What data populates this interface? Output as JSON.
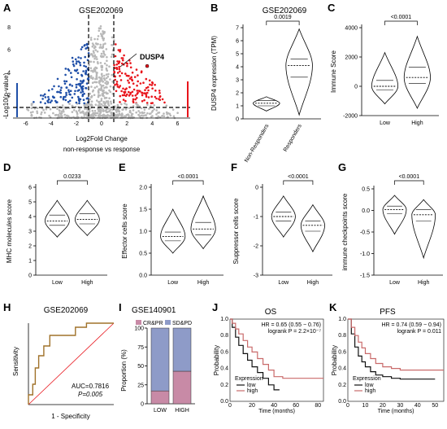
{
  "panels": {
    "A": {
      "letter": "A",
      "title": "GSE202069",
      "ylabel": "-Log10(p-value)",
      "xlabel": "Log2Fold Change",
      "subtitle": "non-response vs response",
      "annotation": "DUSP4",
      "xticks": [
        "-6",
        "-4",
        "-2",
        "0",
        "2",
        "4",
        "6"
      ],
      "yticks": [
        "2",
        "4",
        "6",
        "8"
      ]
    },
    "B": {
      "letter": "B",
      "title": "GSE202069",
      "pvalue": "0.0019",
      "ylabel": "DUSP4 expression (TPM)",
      "groups": [
        "Non-Responders",
        "Responders"
      ],
      "yticks": [
        "0",
        "1",
        "2",
        "3",
        "4",
        "5",
        "6",
        "7"
      ]
    },
    "C": {
      "letter": "C",
      "pvalue": "<0.0001",
      "ylabel": "Immune Score",
      "groups": [
        "Low",
        "High"
      ],
      "yticks": [
        "-2000",
        "0",
        "2000",
        "4000"
      ]
    },
    "D": {
      "letter": "D",
      "pvalue": "0.0233",
      "ylabel": "MHC molecules score",
      "groups": [
        "Low",
        "High"
      ],
      "yticks": [
        "0",
        "1",
        "2",
        "3",
        "4",
        "5",
        "6"
      ]
    },
    "E": {
      "letter": "E",
      "pvalue": "<0.0001",
      "ylabel": "Effector cells score",
      "groups": [
        "Low",
        "High"
      ],
      "yticks": [
        "0.0",
        "0.5",
        "1.0",
        "1.5",
        "2.0"
      ]
    },
    "F": {
      "letter": "F",
      "pvalue": "<0.0001",
      "ylabel": "Suppressor cells score",
      "groups": [
        "Low",
        "High"
      ],
      "yticks": [
        "0",
        "-1",
        "-2",
        "-3"
      ]
    },
    "G": {
      "letter": "G",
      "pvalue": "<0.0001",
      "ylabel": "immune checkpoints score",
      "groups": [
        "Low",
        "High"
      ],
      "yticks": [
        "0.5",
        "0.0",
        "-0.5",
        "-1.0",
        "-1.5"
      ]
    },
    "H": {
      "letter": "H",
      "title": "GSE202069",
      "ylabel": "Sensitivity",
      "xlabel": "1 - Specificity",
      "auc": "AUC=0.7816",
      "pvalue": "P=0.005"
    },
    "I": {
      "letter": "I",
      "title": "GSE140901",
      "ylabel": "Proportion (%)",
      "legend": [
        "CR&PR",
        "SD&PD"
      ],
      "categories": [
        "LOW",
        "HIGH"
      ],
      "yticks": [
        "0",
        "25",
        "50",
        "75",
        "100"
      ]
    },
    "J": {
      "letter": "J",
      "title": "OS",
      "ylabel": "Probability",
      "xlabel": "Time (months)",
      "hr": "HR = 0.65 (0.55 − 0.76)",
      "logrank": "logrank P = 2.2×10⁻⁷",
      "legend_title": "Expression",
      "legend": [
        "low",
        "high"
      ],
      "xticks": [
        "0",
        "20",
        "40",
        "60",
        "80"
      ],
      "yticks": [
        "0.0",
        "0.2",
        "0.4",
        "0.6",
        "0.8",
        "1.0"
      ]
    },
    "K": {
      "letter": "K",
      "title": "PFS",
      "ylabel": "Probability",
      "xlabel": "Time (months)",
      "hr": "HR = 0.74 (0.59 − 0.94)",
      "logrank": "logrank P = 0.011",
      "legend_title": "Expression",
      "legend": [
        "low",
        "high"
      ],
      "xticks": [
        "0",
        "10",
        "20",
        "30",
        "40",
        "50"
      ],
      "yticks": [
        "0.0",
        "0.2",
        "0.4",
        "0.6",
        "0.8",
        "1.0"
      ]
    }
  },
  "colors": {
    "up": "#e8141b",
    "down": "#1f4fa8",
    "ns": "#b8b8b8",
    "roc": "#a0722a",
    "cr": "#c88aa6",
    "sd": "#8e9bc8",
    "km_low": "#111111",
    "km_high": "#c96a6a"
  },
  "chart_data": [
    {
      "type": "scatter",
      "panel": "A",
      "note": "volcano plot",
      "xlim": [
        -7,
        7
      ],
      "ylim": [
        0,
        9
      ],
      "thresholds": {
        "log2fc": [
          -1,
          1
        ],
        "neglog10p": 1.3
      },
      "highlight": {
        "label": "DUSP4",
        "x": 3.6,
        "y": 4.6
      }
    },
    {
      "type": "violin",
      "panel": "B",
      "categories": [
        "Non-Responders",
        "Responders"
      ],
      "medians": [
        1.2,
        4.1
      ],
      "quartiles": [
        [
          1.0,
          1.4
        ],
        [
          3.2,
          4.6
        ]
      ],
      "ranges": [
        [
          0.6,
          1.7
        ],
        [
          0.3,
          6.9
        ]
      ],
      "ylim": [
        0,
        7
      ]
    },
    {
      "type": "violin",
      "panel": "C",
      "categories": [
        "Low",
        "High"
      ],
      "medians": [
        0,
        600
      ],
      "quartiles": [
        [
          -250,
          400
        ],
        [
          200,
          1300
        ]
      ],
      "ranges": [
        [
          -1200,
          2300
        ],
        [
          -1500,
          3400
        ]
      ],
      "ylim": [
        -2000,
        4000
      ]
    },
    {
      "type": "violin",
      "panel": "D",
      "categories": [
        "Low",
        "High"
      ],
      "medians": [
        3.7,
        3.8
      ],
      "quartiles": [
        [
          3.4,
          4.1
        ],
        [
          3.5,
          4.2
        ]
      ],
      "ranges": [
        [
          2.6,
          5.1
        ],
        [
          2.7,
          5.1
        ]
      ],
      "ylim": [
        0,
        6
      ]
    },
    {
      "type": "violin",
      "panel": "E",
      "categories": [
        "Low",
        "High"
      ],
      "medians": [
        0.88,
        1.05
      ],
      "quartiles": [
        [
          0.78,
          0.98
        ],
        [
          0.92,
          1.2
        ]
      ],
      "ranges": [
        [
          0.5,
          1.5
        ],
        [
          0.6,
          1.8
        ]
      ],
      "ylim": [
        0,
        2
      ]
    },
    {
      "type": "violin",
      "panel": "F",
      "categories": [
        "Low",
        "High"
      ],
      "medians": [
        -1.0,
        -1.3
      ],
      "quartiles": [
        [
          -0.85,
          -1.15
        ],
        [
          -1.15,
          -1.5
        ]
      ],
      "ranges": [
        [
          -0.3,
          -1.7
        ],
        [
          -0.6,
          -2.2
        ]
      ],
      "ylim": [
        -3,
        0
      ]
    },
    {
      "type": "violin",
      "panel": "G",
      "categories": [
        "Low",
        "High"
      ],
      "medians": [
        0.02,
        -0.1
      ],
      "quartiles": [
        [
          0.1,
          -0.08
        ],
        [
          0.02,
          -0.25
        ]
      ],
      "ranges": [
        [
          0.35,
          -0.55
        ],
        [
          0.25,
          -1.1
        ]
      ],
      "ylim": [
        -1.5,
        0.5
      ]
    },
    {
      "type": "line",
      "panel": "H",
      "note": "ROC curve",
      "x": [
        0,
        0,
        0.05,
        0.05,
        0.08,
        0.08,
        0.12,
        0.12,
        0.18,
        0.18,
        0.25,
        0.25,
        0.32,
        0.32,
        0.55,
        0.55,
        0.68,
        0.68,
        0.8,
        0.8,
        1.0
      ],
      "y": [
        0,
        0.12,
        0.12,
        0.25,
        0.25,
        0.45,
        0.45,
        0.6,
        0.6,
        0.72,
        0.72,
        0.85,
        0.85,
        0.85,
        0.85,
        0.95,
        0.95,
        1.0,
        1.0,
        1.0,
        1.0
      ],
      "xlim": [
        0,
        1
      ],
      "ylim": [
        0,
        1
      ]
    },
    {
      "type": "bar",
      "panel": "I",
      "categories": [
        "LOW",
        "HIGH"
      ],
      "series": [
        {
          "name": "CR&PR",
          "values": [
            17,
            43
          ]
        },
        {
          "name": "SD&PD",
          "values": [
            83,
            57
          ]
        }
      ],
      "ylim": [
        0,
        100
      ]
    },
    {
      "type": "line",
      "panel": "J",
      "note": "Kaplan-Meier OS",
      "xlim": [
        0,
        85
      ],
      "ylim": [
        0,
        1
      ],
      "series": [
        {
          "name": "low",
          "x": [
            0,
            2,
            5,
            8,
            12,
            16,
            20,
            25,
            30,
            35,
            40,
            45
          ],
          "y": [
            1.0,
            0.9,
            0.78,
            0.68,
            0.58,
            0.5,
            0.42,
            0.35,
            0.28,
            0.2,
            0.14,
            0.14
          ]
        },
        {
          "name": "high",
          "x": [
            0,
            2,
            5,
            8,
            12,
            16,
            20,
            25,
            30,
            35,
            40,
            48,
            60,
            75,
            85
          ],
          "y": [
            1.0,
            0.95,
            0.88,
            0.82,
            0.74,
            0.66,
            0.6,
            0.52,
            0.45,
            0.38,
            0.3,
            0.28,
            0.28,
            0.28,
            0.28
          ]
        }
      ]
    },
    {
      "type": "line",
      "panel": "K",
      "note": "Kaplan-Meier PFS",
      "xlim": [
        0,
        55
      ],
      "ylim": [
        0,
        1
      ],
      "series": [
        {
          "name": "low",
          "x": [
            0,
            2,
            4,
            6,
            8,
            10,
            13,
            16,
            20,
            25,
            30,
            40,
            50
          ],
          "y": [
            1.0,
            0.82,
            0.66,
            0.55,
            0.48,
            0.42,
            0.36,
            0.32,
            0.3,
            0.28,
            0.27,
            0.27,
            0.27
          ]
        },
        {
          "name": "high",
          "x": [
            0,
            2,
            4,
            6,
            8,
            10,
            13,
            16,
            20,
            25,
            30,
            40,
            50,
            55
          ],
          "y": [
            1.0,
            0.9,
            0.8,
            0.72,
            0.65,
            0.58,
            0.52,
            0.46,
            0.42,
            0.4,
            0.38,
            0.38,
            0.38,
            0.38
          ]
        }
      ]
    }
  ]
}
